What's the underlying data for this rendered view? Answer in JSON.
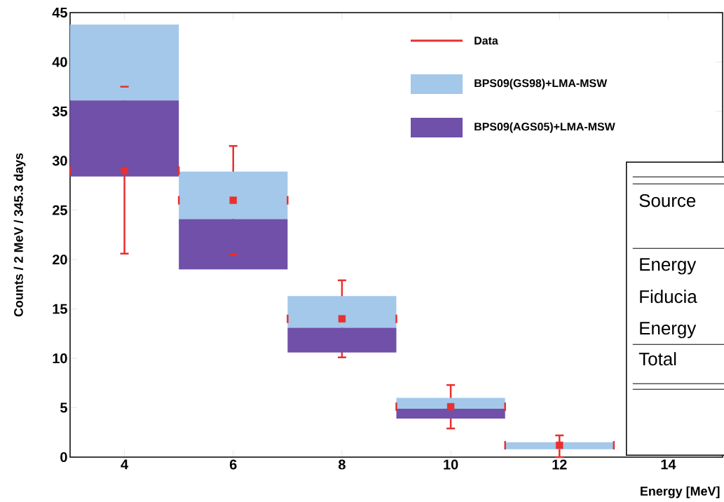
{
  "chart_data": {
    "type": "bar",
    "xlabel": "Energy [MeV]",
    "ylabel": "Counts / 2 MeV / 345.3 days",
    "xlim": [
      3,
      15
    ],
    "xticks": [
      4,
      6,
      8,
      10,
      12,
      14
    ],
    "ylim": [
      0,
      45
    ],
    "yticks": [
      0,
      5,
      10,
      15,
      20,
      25,
      30,
      35,
      40,
      45
    ],
    "legend": "top right",
    "grid": false,
    "x": [
      4,
      6,
      8,
      10,
      12
    ],
    "series": [
      {
        "name": "Data",
        "type": "scatter",
        "color": "#e8302f",
        "marker": "square",
        "values": [
          29,
          26,
          14,
          5.1,
          1.2
        ],
        "errors": [
          [
            20.6,
            37.5
          ],
          [
            20.5,
            31.5
          ],
          [
            10.1,
            17.9
          ],
          [
            2.9,
            7.3
          ],
          [
            0,
            2.2
          ]
        ],
        "xerrors": [
          1,
          1,
          1,
          1,
          1
        ]
      },
      {
        "name": "BPS09(GS98)+LMA-MSW",
        "color": "#a3c8ea",
        "base": [
          36.1,
          24.1,
          13.1,
          4.9,
          0.8
        ],
        "values": [
          7.7,
          4.8,
          3.2,
          1.1,
          0.7
        ]
      },
      {
        "name": "BPS09(AGS05)+LMA-MSW",
        "color": "#7050a8",
        "base": [
          28.4,
          19.0,
          10.6,
          3.9,
          null
        ],
        "values": [
          7.7,
          5.1,
          2.5,
          1.0,
          null
        ]
      }
    ],
    "annotations": [
      "Source",
      "Energy",
      "Fiducia",
      "Energy",
      "Total"
    ]
  }
}
